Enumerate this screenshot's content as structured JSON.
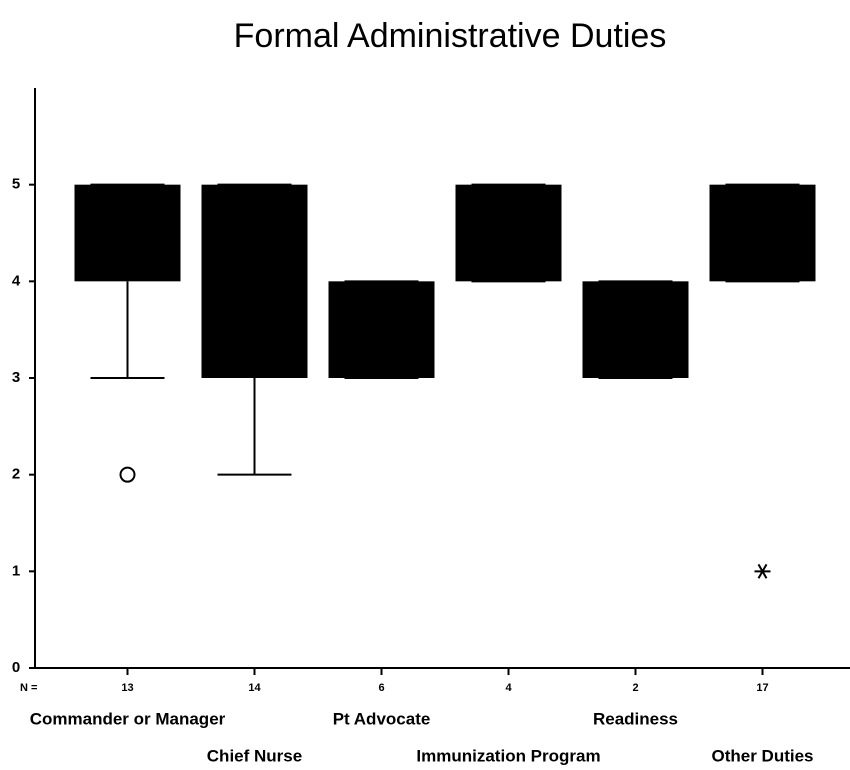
{
  "chart_data": {
    "type": "box",
    "title": "Formal Administrative Duties",
    "categories": [
      "Commander or Manager",
      "Chief Nurse",
      "Pt Advocate",
      "Immunization Program",
      "Readiness",
      "Other Duties"
    ],
    "n_label": "N =",
    "n": [
      13,
      14,
      6,
      4,
      2,
      17
    ],
    "q1": [
      4,
      3,
      3,
      4,
      3,
      4
    ],
    "q3": [
      5,
      5,
      4,
      5,
      4,
      5
    ],
    "whisker_low": [
      3,
      2,
      3,
      4,
      3,
      4
    ],
    "whisker_high": [
      5,
      5,
      4,
      5,
      4,
      5
    ],
    "outliers": [
      [
        2
      ],
      [],
      [],
      [],
      [],
      []
    ],
    "extremes": [
      [],
      [],
      [],
      [],
      [],
      [
        1
      ]
    ],
    "color": "#000000",
    "ylim": [
      0,
      6
    ],
    "yticks": [
      0,
      1,
      2,
      3,
      4,
      5
    ]
  }
}
